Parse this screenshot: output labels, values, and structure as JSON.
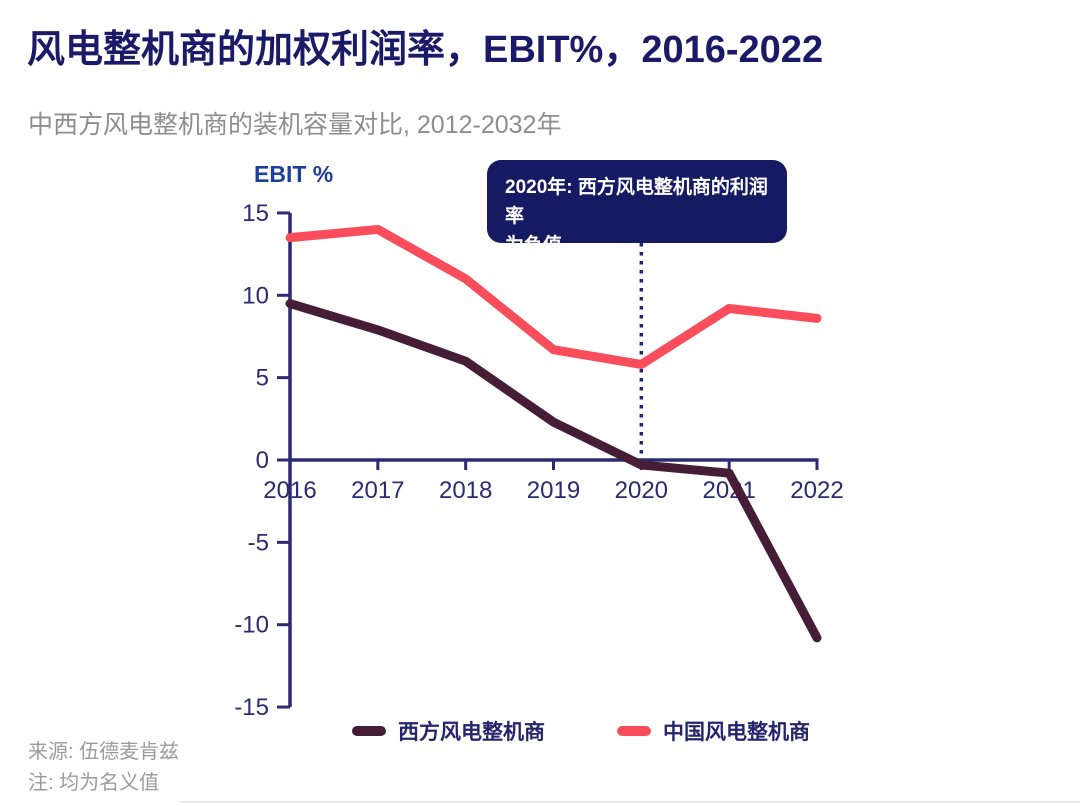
{
  "header": {
    "title": "风电整机商的加权利润率，EBIT%，2016-2022",
    "subtitle": "中西方风电整机商的装机容量对比, 2012-2032年"
  },
  "chart_data": {
    "type": "line",
    "title": "风电整机商的加权利润率，EBIT%，2016-2022",
    "ylabel": "EBIT %",
    "x": [
      "2016",
      "2017",
      "2018",
      "2019",
      "2020",
      "2021",
      "2022"
    ],
    "series": [
      {
        "name": "西方风电整机商",
        "color": "#451d37",
        "values": [
          9.5,
          7.9,
          6.0,
          2.3,
          -0.3,
          -0.8,
          -10.8
        ]
      },
      {
        "name": "中国风电整机商",
        "color": "#f94d5c",
        "values": [
          13.5,
          14.0,
          11.0,
          6.7,
          5.8,
          9.2,
          8.6
        ]
      }
    ],
    "ylim": [
      -15,
      15
    ],
    "yticks": [
      15,
      10,
      5,
      0,
      -5,
      -10,
      -15
    ],
    "grid": false,
    "legend_position": "bottom",
    "axis_color": "#2b2a72",
    "annotation": {
      "x": "2020",
      "line1": "2020年: 西方风电整机商的利润率",
      "line2": "为负值",
      "bg": "#151a62",
      "text_color": "#ffffff",
      "connector_color": "#1e2470"
    }
  },
  "footer": {
    "source": "来源: 伍德麦肯兹",
    "note": "注: 均为名义值"
  }
}
